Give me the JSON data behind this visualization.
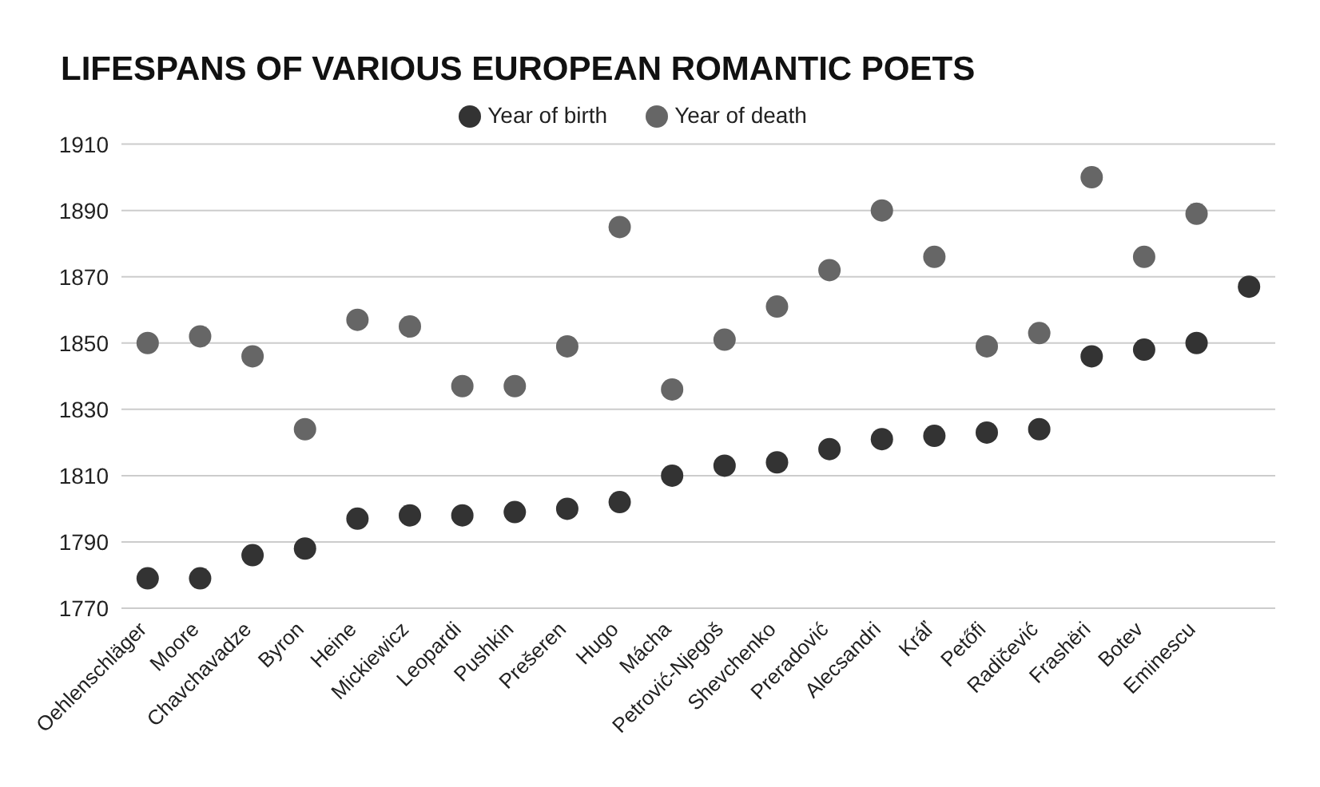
{
  "chart_data": {
    "type": "scatter",
    "title": "LIFESPANS OF VARIOUS EUROPEAN ROMANTIC POETS",
    "categories": [
      "Oehlenschläger",
      "Moore",
      "Chavchavadze",
      "Byron",
      "Heine",
      "Mickiewicz",
      "Leopardi",
      "Pushkin",
      "Prešeren",
      "Hugo",
      "Mácha",
      "Petrović-Njegoš",
      "Shevchenko",
      "Preradović",
      "Alecsandri",
      "Kráľ",
      "Petőfi",
      "Radičević",
      "Frashëri",
      "Botev",
      "Eminescu",
      null
    ],
    "series": [
      {
        "name": "Year of birth",
        "color": "#333333",
        "values": [
          1779,
          1779,
          1786,
          1788,
          1797,
          1798,
          1798,
          1799,
          1800,
          1802,
          1810,
          1813,
          1814,
          1818,
          1821,
          1822,
          1823,
          1824,
          1846,
          1848,
          1850,
          1867
        ]
      },
      {
        "name": "Year of death",
        "color": "#666666",
        "values": [
          1850,
          1852,
          1846,
          1824,
          1857,
          1855,
          1837,
          1837,
          1849,
          1885,
          1836,
          1851,
          1861,
          1872,
          1890,
          1876,
          1849,
          1853,
          1900,
          1876,
          1889,
          null
        ]
      }
    ],
    "ylim": [
      1770,
      1910
    ],
    "yticks": [
      1770,
      1790,
      1810,
      1830,
      1850,
      1870,
      1890,
      1910
    ],
    "grid": "y",
    "legend": "top",
    "marker": "circle"
  }
}
